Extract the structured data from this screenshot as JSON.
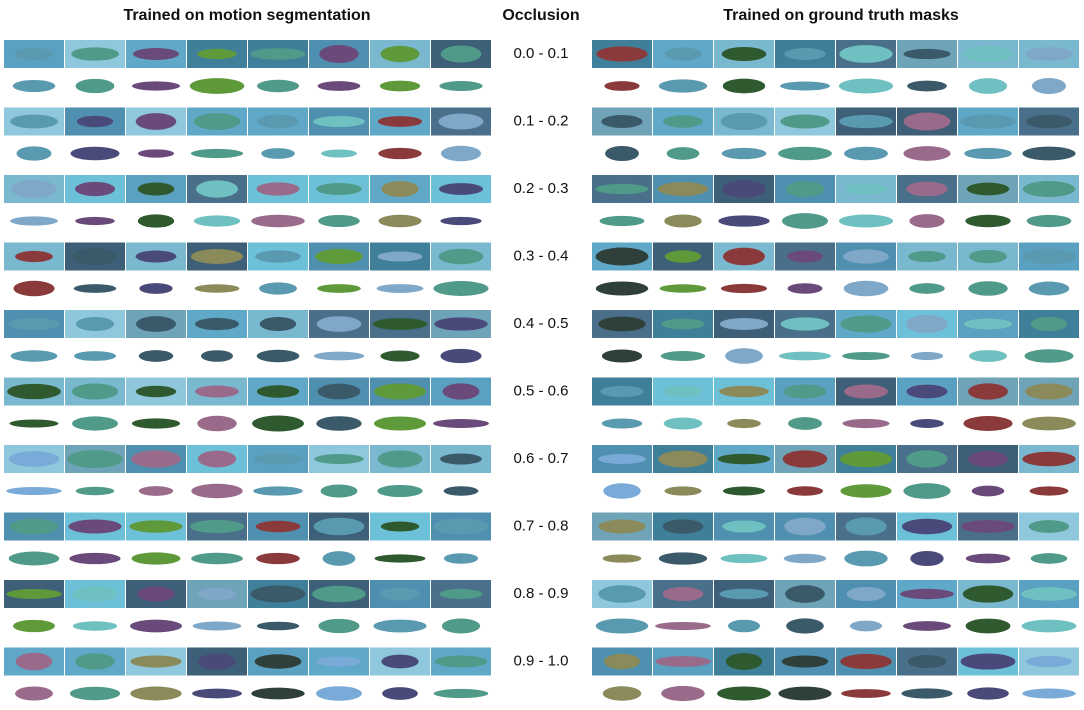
{
  "headers": {
    "left": "Trained on motion segmentation",
    "middle": "Occlusion",
    "right": "Trained on ground truth masks"
  },
  "occlusion_labels": [
    "0.0 - 0.1",
    "0.1 - 0.2",
    "0.2 - 0.3",
    "0.3 - 0.4",
    "0.4 - 0.5",
    "0.5 - 0.6",
    "0.6 - 0.7",
    "0.7 - 0.8",
    "0.8 - 0.9",
    "0.9 - 1.0"
  ]
}
